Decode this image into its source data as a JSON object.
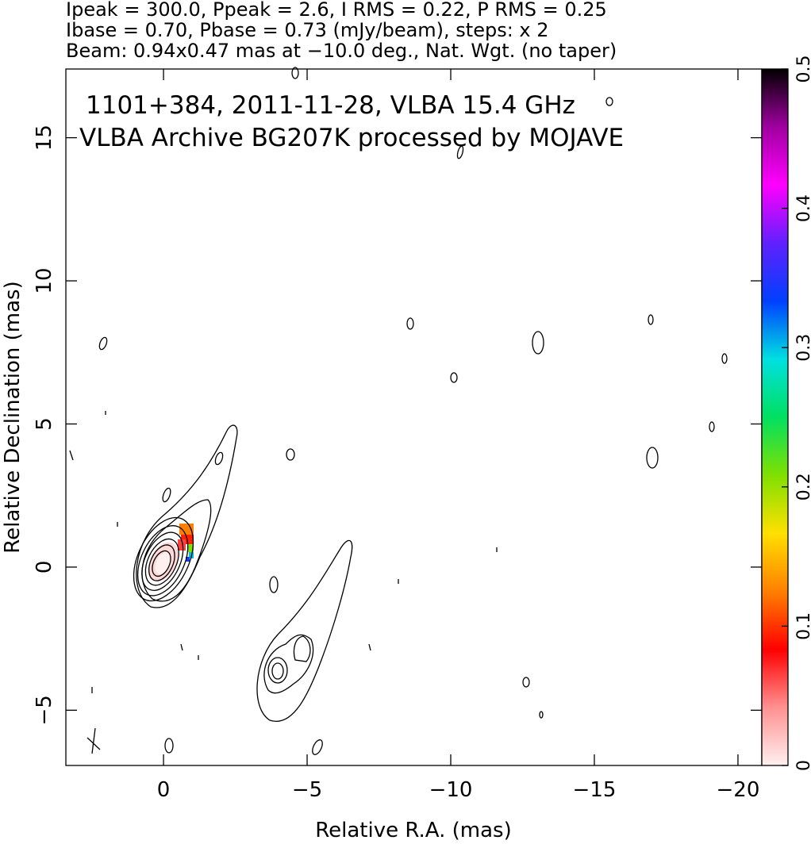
{
  "chart_data": {
    "type": "contour",
    "header_lines": [
      "Ipeak = 300.0, Ppeak = 2.6, I RMS = 0.22, P RMS = 0.25",
      "Ibase = 0.70, Pbase = 0.73 (mJy/beam), steps: x 2",
      "Beam: 0.94x0.47 mas at −10.0 deg., Nat. Wgt. (no taper)"
    ],
    "annotations": [
      "1101+384, 2011-11-28, VLBA 15.4 GHz",
      "VLBA Archive BG207K processed by MOJAVE"
    ],
    "x_label": "Relative R.A. (mas)",
    "y_label": "Relative Declination (mas)",
    "xlim": [
      3.4,
      -20.83
    ],
    "ylim": [
      -6.93,
      17.4
    ],
    "xticks": [
      0,
      {
        "value": -5,
        "label": "−5"
      },
      {
        "value": -10,
        "label": "−10"
      },
      {
        "value": -15,
        "label": "−15"
      },
      {
        "value": -20,
        "label": "−20"
      }
    ],
    "yticks": [
      {
        "value": -5,
        "label": "−5"
      },
      0,
      5,
      10,
      15
    ],
    "colorbar": {
      "lim": [
        0,
        0.5
      ],
      "ticks": [
        0,
        0.1,
        0.2,
        0.3,
        0.4,
        0.5
      ],
      "colors": [
        "#fff0f0",
        "#ff9090",
        "#ff0000",
        "#ff8000",
        "#ffe000",
        "#80e000",
        "#00e060",
        "#00e0e0",
        "#0040ff",
        "#6020ff",
        "#ff00ff",
        "#a000a0",
        "#000000"
      ]
    }
  }
}
